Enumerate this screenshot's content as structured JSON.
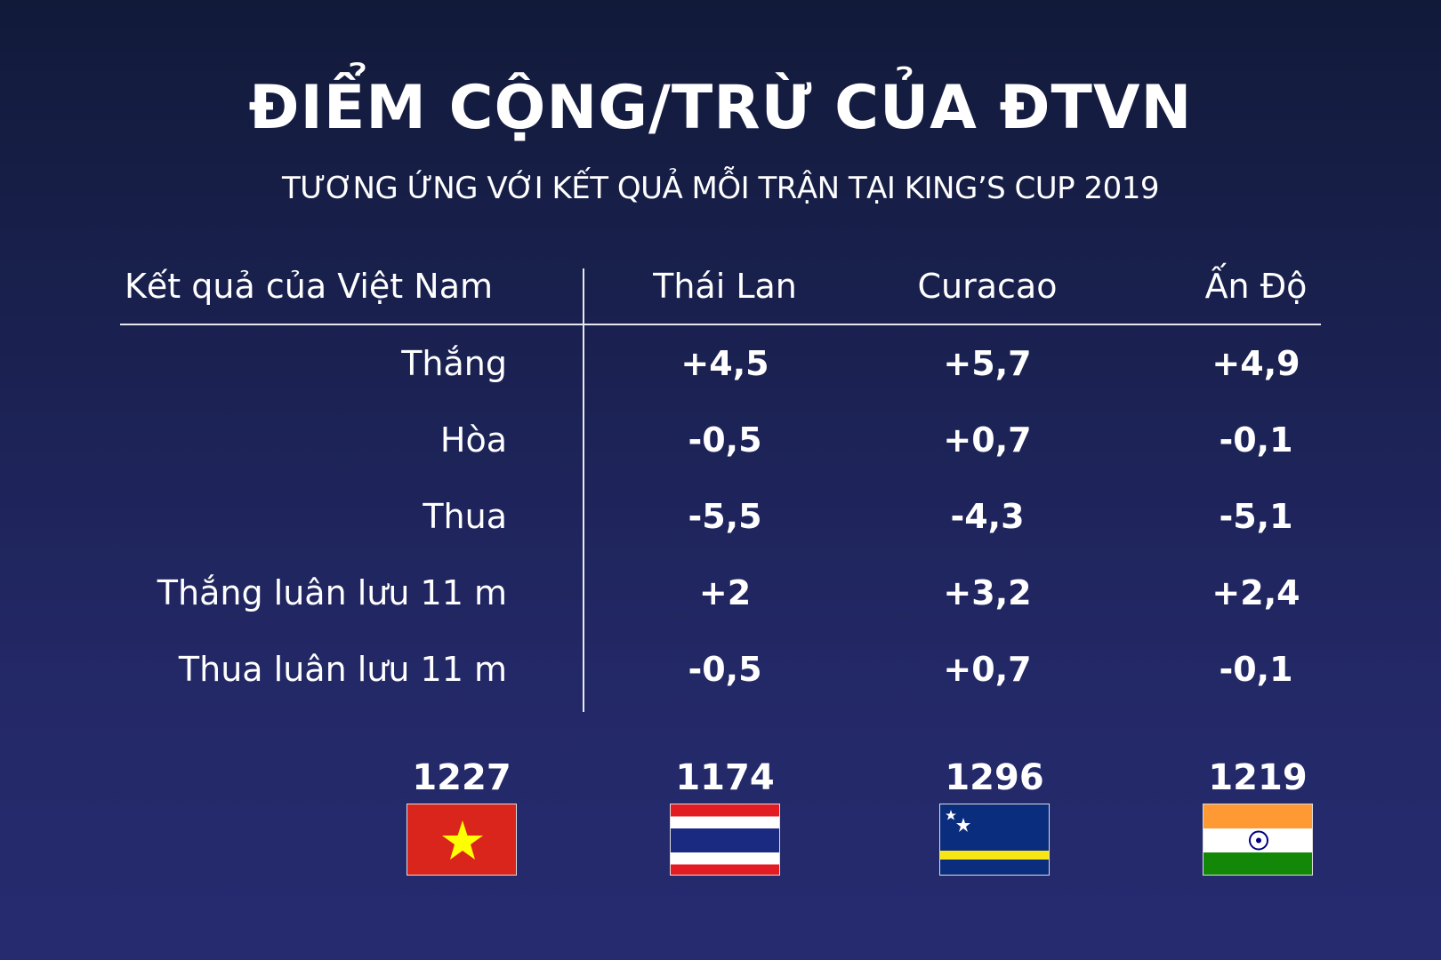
{
  "title": "ĐIỂM CỘNG/TRỪ CỦA ĐTVN",
  "subtitle": "TƯƠNG ỨNG VỚI KẾT QUẢ MỖI TRẬN TẠI KING’S CUP 2019",
  "table": {
    "row_header": "Kết quả của Việt Nam",
    "columns": [
      "Thái Lan",
      "Curacao",
      "Ấn Độ"
    ],
    "rows": [
      {
        "label": "Thắng",
        "values": [
          "+4,5",
          "+5,7",
          "+4,9"
        ]
      },
      {
        "label": "Hòa",
        "values": [
          "-0,5",
          "+0,7",
          "-0,1"
        ]
      },
      {
        "label": "Thua",
        "values": [
          "-5,5",
          "-4,3",
          "-5,1"
        ]
      },
      {
        "label": "Thắng luân lưu 11 m",
        "values": [
          "+2",
          "+3,2",
          "+2,4"
        ]
      },
      {
        "label": "Thua luân lưu 11 m",
        "values": [
          "-0,5",
          "+0,7",
          "-0,1"
        ]
      }
    ]
  },
  "rankings": [
    {
      "points": "1227",
      "flag": "vietnam-flag"
    },
    {
      "points": "1174",
      "flag": "thailand-flag"
    },
    {
      "points": "1296",
      "flag": "curacao-flag"
    },
    {
      "points": "1219",
      "flag": "india-flag"
    }
  ],
  "colors": {
    "background_top": "#121a3a",
    "background_bottom": "#262b70",
    "text": "#ffffff"
  }
}
